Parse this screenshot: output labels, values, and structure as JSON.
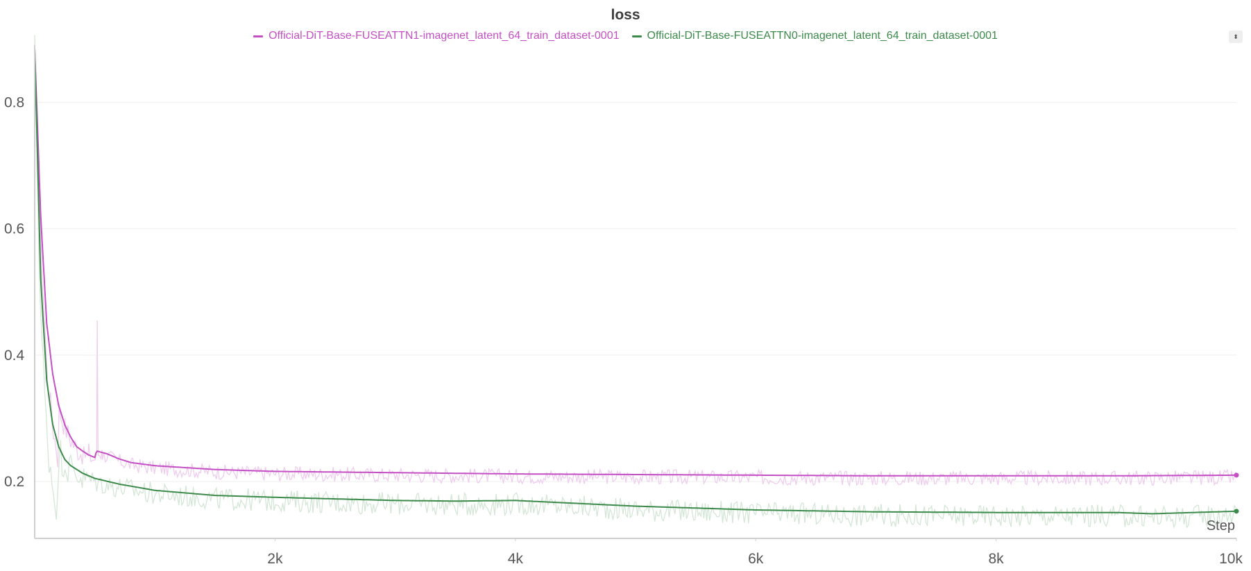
{
  "chart_data": {
    "type": "line",
    "title": "loss",
    "xlabel": "Step",
    "ylabel": "",
    "xlim": [
      0,
      10000
    ],
    "ylim": [
      0.11,
      0.885
    ],
    "x_ticks": [
      2000,
      4000,
      6000,
      8000,
      10000
    ],
    "x_tick_labels": [
      "2k",
      "4k",
      "6k",
      "8k",
      "10k"
    ],
    "y_ticks": [
      0.2,
      0.4,
      0.6,
      0.8
    ],
    "y_tick_labels": [
      "0.2",
      "0.4",
      "0.6",
      "0.8"
    ],
    "grid": "horizontal",
    "legend_position": "top-center",
    "series": [
      {
        "name": "Official-DiT-Base-FUSEATTN1-imagenet_latent_64_train_dataset-0001",
        "color": "#c44fc4",
        "raw_color": "#eecdee",
        "raw_noise": 0.012,
        "x": [
          0,
          50,
          100,
          150,
          200,
          250,
          300,
          350,
          400,
          450,
          500,
          510,
          520,
          600,
          700,
          800,
          1000,
          1500,
          2000,
          3000,
          4000,
          5000,
          6000,
          7000,
          8000,
          9000,
          10000
        ],
        "smooth": [
          0.885,
          0.62,
          0.45,
          0.37,
          0.32,
          0.29,
          0.27,
          0.255,
          0.248,
          0.242,
          0.238,
          0.245,
          0.248,
          0.244,
          0.236,
          0.23,
          0.225,
          0.219,
          0.216,
          0.214,
          0.212,
          0.211,
          0.21,
          0.209,
          0.209,
          0.209,
          0.21
        ],
        "raw_spikes": [
          [
            520,
            0.455
          ],
          [
            560,
            0.25
          ],
          [
            450,
            0.26
          ]
        ]
      },
      {
        "name": "Official-DiT-Base-FUSEATTN0-imagenet_latent_64_train_dataset-0001",
        "color": "#3b8a4a",
        "raw_color": "#d4e6d6",
        "raw_noise": 0.018,
        "x": [
          0,
          50,
          100,
          150,
          200,
          250,
          300,
          400,
          500,
          700,
          1000,
          1500,
          2000,
          3000,
          3500,
          4000,
          5000,
          6000,
          7000,
          8000,
          9000,
          9300,
          10000
        ],
        "smooth": [
          0.885,
          0.52,
          0.36,
          0.29,
          0.255,
          0.235,
          0.225,
          0.213,
          0.205,
          0.196,
          0.186,
          0.178,
          0.175,
          0.17,
          0.169,
          0.17,
          0.161,
          0.155,
          0.152,
          0.151,
          0.151,
          0.149,
          0.153
        ],
        "raw_spikes": []
      }
    ]
  },
  "legend_toggle_label": "⬍"
}
